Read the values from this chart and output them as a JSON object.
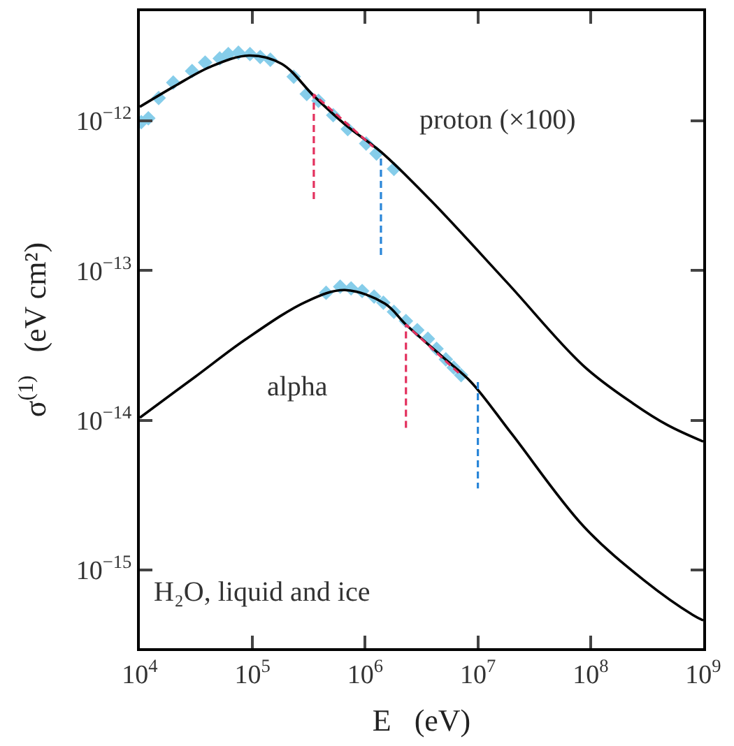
{
  "chart_data": {
    "type": "line",
    "xlabel": "E   (eV)",
    "ylabel": "σ$^{(1)}$   (eV cm²)",
    "log": "xy",
    "grid": false,
    "legend": false,
    "xlim": [
      10000,
      1000000000
    ],
    "ylim": [
      3e-16,
      5.4e-12
    ],
    "xticks": [
      {
        "value": 10000,
        "label": "10$^{4}$"
      },
      {
        "value": 100000,
        "label": "10$^{5}$"
      },
      {
        "value": 1000000,
        "label": "10$^{6}$"
      },
      {
        "value": 10000000,
        "label": "10$^{7}$"
      },
      {
        "value": 100000000,
        "label": "10$^{8}$"
      },
      {
        "value": 1000000000,
        "label": "10$^{9}$"
      }
    ],
    "yticks": [
      {
        "value": 1e-15,
        "label": "10$^{−15}$"
      },
      {
        "value": 1e-14,
        "label": "10$^{−14}$"
      },
      {
        "value": 1e-13,
        "label": "10$^{−13}$"
      },
      {
        "value": 1e-12,
        "label": "10$^{−12}$"
      }
    ],
    "annotations": [
      "H₂O, liquid and ice"
    ],
    "series": [
      {
        "type": "scatter",
        "marker": "diamond",
        "color": "#86cdea",
        "x": [
          10300,
          11900,
          14700,
          19800,
          29100,
          38000,
          51200,
          61000,
          75000,
          95000,
          117000,
          144000,
          232000,
          303000,
          385000,
          520000,
          700000,
          1020000,
          1260000,
          1800000
        ],
        "values": [
          9.8e-13,
          1.04e-12,
          1.42e-12,
          1.8e-12,
          2.15e-12,
          2.45e-12,
          2.61e-12,
          2.79e-12,
          2.85e-12,
          2.79e-12,
          2.67e-12,
          2.56e-12,
          1.97e-12,
          1.51e-12,
          1.36e-12,
          1.09e-12,
          8.8e-13,
          7.05e-13,
          6.05e-13,
          4.77e-13
        ]
      },
      {
        "type": "scatter",
        "marker": "diamond",
        "color": "#86cdea",
        "x": [
          450000,
          600000,
          750000,
          940000,
          1200000,
          1450000,
          1800000,
          2300000,
          2900000,
          3600000,
          4300000,
          5200000,
          6100000,
          7100000
        ],
        "values": [
          7.1e-14,
          7.8e-14,
          7.6e-14,
          7.3e-14,
          6.7e-14,
          6.1e-14,
          5.3e-14,
          4.6e-14,
          4e-14,
          3.5e-14,
          3e-14,
          2.55e-14,
          2.25e-14,
          2e-14
        ]
      },
      {
        "name": "proton (×100)",
        "color": "#000000",
        "line_style": "solid",
        "x": [
          10000,
          20000,
          42000,
          93000,
          182000,
          355000,
          692000,
          1380000,
          3800000,
          18200000,
          87000000,
          240000000,
          480000000,
          1000000000
        ],
        "values": [
          1.24e-12,
          1.69e-12,
          2.29e-12,
          2.73e-12,
          2.4e-12,
          1.45e-12,
          9.2e-13,
          6.2e-13,
          2.95e-13,
          8.3e-14,
          2.3e-14,
          1.29e-14,
          9.3e-15,
          7.2e-15
        ]
      },
      {
        "name": "alpha",
        "color": "#000000",
        "line_style": "solid",
        "x": [
          10000,
          31000,
          87000,
          300000,
          660000,
          1500000,
          2300000,
          5000000,
          8700000,
          20000000,
          87000000,
          300000000,
          810000000,
          1000000000
        ],
        "values": [
          1.04e-14,
          1.95e-14,
          3.47e-14,
          6.2e-14,
          7.4e-14,
          6e-14,
          4.35e-14,
          2.6e-14,
          1.8e-14,
          8.1e-15,
          1.95e-15,
          8.5e-16,
          5e-16,
          4.6e-16
        ]
      },
      {
        "type": "line",
        "color": "#e3315e",
        "line_style": "dashed",
        "x": [
          350000,
          350000,
          1180000
        ],
        "values": [
          3e-13,
          1.5e-12,
          6.7e-13
        ]
      },
      {
        "type": "line",
        "color": "#2a86d8",
        "line_style": "dashed",
        "x": [
          1380000,
          1380000
        ],
        "values": [
          5.6e-13,
          1.23e-13
        ]
      },
      {
        "type": "line",
        "color": "#e3315e",
        "line_style": "dashed",
        "x": [
          2300000,
          2300000,
          7100000
        ],
        "values": [
          8.9e-15,
          4.35e-14,
          2e-14
        ]
      },
      {
        "type": "line",
        "color": "#2a86d8",
        "line_style": "dashed",
        "x": [
          10000000,
          10000000
        ],
        "values": [
          1.8e-14,
          3.5e-15
        ]
      }
    ]
  }
}
